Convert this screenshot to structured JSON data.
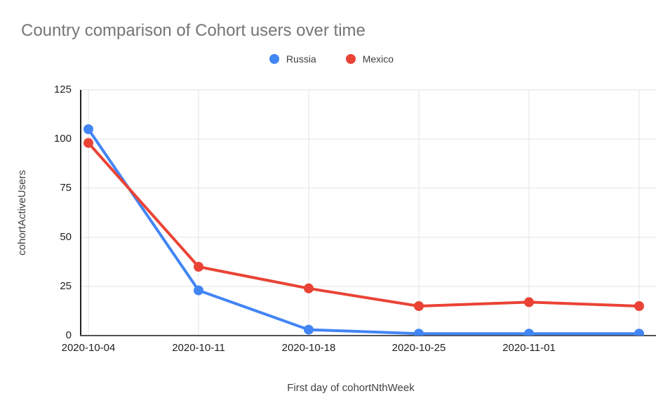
{
  "page": {
    "title": "Country comparison of Cohort users over time"
  },
  "chart_data": {
    "type": "line",
    "title": "Country comparison of Cohort users over time",
    "x": [
      "2020-10-04",
      "2020-10-11",
      "2020-10-18",
      "2020-10-25",
      "2020-11-01",
      ""
    ],
    "x_tick_labels": [
      "2020-10-04",
      "2020-10-11",
      "2020-10-18",
      "2020-10-25",
      "2020-11-01"
    ],
    "series": [
      {
        "name": "Russia",
        "color": "#4285F4",
        "values": [
          105,
          23,
          3,
          1,
          1,
          1
        ]
      },
      {
        "name": "Mexico",
        "color": "#EA4335",
        "values": [
          98,
          35,
          24,
          15,
          17,
          15
        ]
      }
    ],
    "xlabel": "First day of cohortNthWeek",
    "ylabel": "cohortActiveUsers",
    "ylim": [
      0,
      125
    ],
    "yticks": [
      0,
      25,
      50,
      75,
      100,
      125
    ],
    "grid": true,
    "legend_position": "top-center",
    "colors": {
      "title_text": "#757575",
      "tick_text": "#212121",
      "axis_title_text": "#424242",
      "gridline": "#e3e3e3",
      "y_axis_line": "#212121",
      "x_axis_line": "#545454"
    }
  }
}
